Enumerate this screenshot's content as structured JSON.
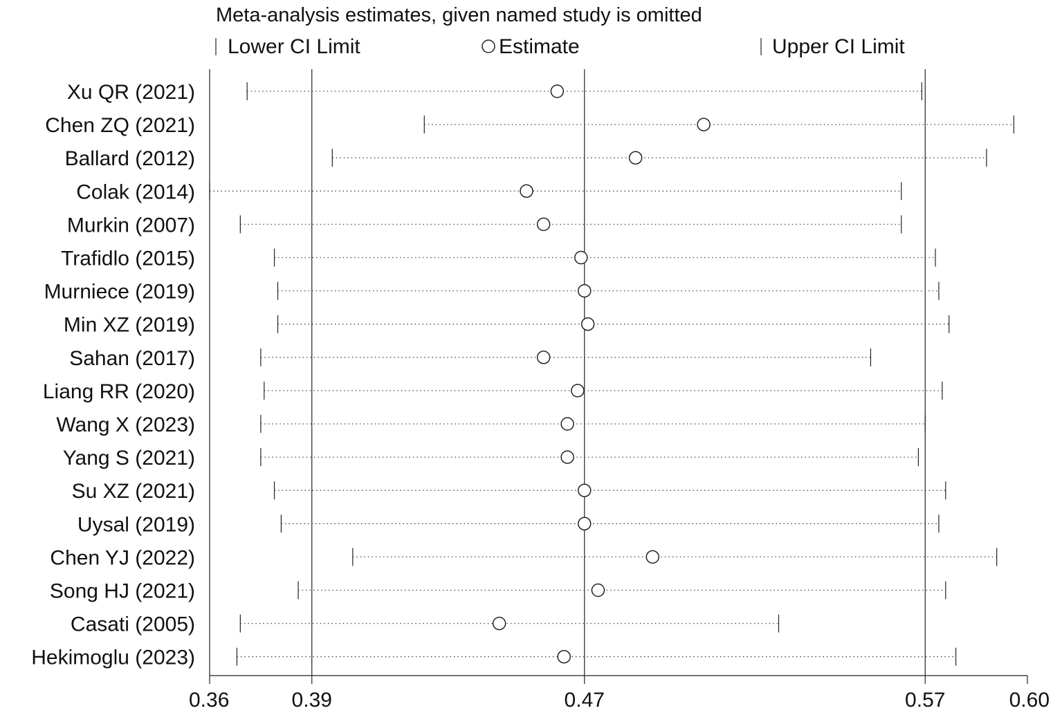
{
  "chart_data": {
    "type": "forest",
    "title": "Meta-analysis estimates, given named study is omitted",
    "legend": {
      "lower": "Lower CI Limit",
      "estimate": "Estimate",
      "upper": "Upper CI Limit"
    },
    "xlim": [
      0.36,
      0.6
    ],
    "reference_lines": [
      0.39,
      0.47,
      0.57
    ],
    "ticks": [
      {
        "value": 0.36,
        "label": "0.36"
      },
      {
        "value": 0.39,
        "label": "0.39"
      },
      {
        "value": 0.47,
        "label": "0.47"
      },
      {
        "value": 0.57,
        "label": "0.57"
      },
      {
        "value": 0.6,
        "label": "0.60"
      }
    ],
    "studies": [
      {
        "label": "Xu QR (2021)",
        "lower": 0.371,
        "estimate": 0.462,
        "upper": 0.569
      },
      {
        "label": "Chen ZQ (2021)",
        "lower": 0.423,
        "estimate": 0.505,
        "upper": 0.596
      },
      {
        "label": "Ballard (2012)",
        "lower": 0.396,
        "estimate": 0.485,
        "upper": 0.588
      },
      {
        "label": "Colak (2014)",
        "lower": 0.36,
        "estimate": 0.453,
        "upper": 0.563
      },
      {
        "label": "Murkin (2007)",
        "lower": 0.369,
        "estimate": 0.458,
        "upper": 0.563
      },
      {
        "label": "Trafidlo (2015)",
        "lower": 0.379,
        "estimate": 0.469,
        "upper": 0.573
      },
      {
        "label": "Murniece (2019)",
        "lower": 0.38,
        "estimate": 0.47,
        "upper": 0.574
      },
      {
        "label": "Min XZ (2019)",
        "lower": 0.38,
        "estimate": 0.471,
        "upper": 0.577
      },
      {
        "label": "Sahan (2017)",
        "lower": 0.375,
        "estimate": 0.458,
        "upper": 0.554
      },
      {
        "label": "Liang RR (2020)",
        "lower": 0.376,
        "estimate": 0.468,
        "upper": 0.575
      },
      {
        "label": "Wang X (2023)",
        "lower": 0.375,
        "estimate": 0.465,
        "upper": 0.57
      },
      {
        "label": "Yang S (2021)",
        "lower": 0.375,
        "estimate": 0.465,
        "upper": 0.568
      },
      {
        "label": "Su XZ (2021)",
        "lower": 0.379,
        "estimate": 0.47,
        "upper": 0.576
      },
      {
        "label": "Uysal (2019)",
        "lower": 0.381,
        "estimate": 0.47,
        "upper": 0.574
      },
      {
        "label": "Chen YJ (2022)",
        "lower": 0.402,
        "estimate": 0.49,
        "upper": 0.591
      },
      {
        "label": "Song HJ (2021)",
        "lower": 0.386,
        "estimate": 0.474,
        "upper": 0.576
      },
      {
        "label": "Casati (2005)",
        "lower": 0.369,
        "estimate": 0.445,
        "upper": 0.527
      },
      {
        "label": "Hekimoglu (2023)",
        "lower": 0.368,
        "estimate": 0.464,
        "upper": 0.579
      }
    ]
  }
}
